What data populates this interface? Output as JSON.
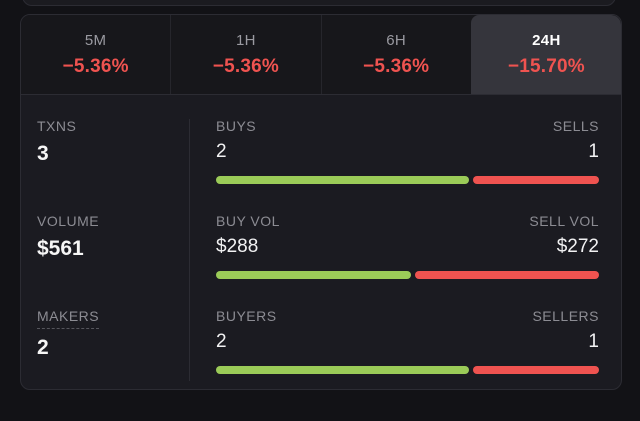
{
  "colors": {
    "page_bg": "#121216",
    "panel_bg": "#1b1b21",
    "active_tab_bg": "#35353c",
    "negative_red": "#ef5350",
    "buy_green": "#9bcb58",
    "sell_red": "#ef5350",
    "label_gray": "#8c8c93"
  },
  "timeframes": [
    {
      "label": "5M",
      "change": "−5.36%",
      "active": false
    },
    {
      "label": "1H",
      "change": "−5.36%",
      "active": false
    },
    {
      "label": "6H",
      "change": "−5.36%",
      "active": false
    },
    {
      "label": "24H",
      "change": "−15.70%",
      "active": true
    }
  ],
  "stats_left": [
    {
      "label": "TXNS",
      "value": "3"
    },
    {
      "label": "VOLUME",
      "value": "$561"
    },
    {
      "label": "MAKERS",
      "value": "2"
    }
  ],
  "stats_right": [
    {
      "left_label": "BUYS",
      "right_label": "SELLS",
      "left_value": "2",
      "right_value": "1",
      "buy": 2,
      "sell": 1
    },
    {
      "left_label": "BUY VOL",
      "right_label": "SELL VOL",
      "left_value": "$288",
      "right_value": "$272",
      "buy": 288,
      "sell": 272
    },
    {
      "left_label": "BUYERS",
      "right_label": "SELLERS",
      "left_value": "2",
      "right_value": "1",
      "buy": 2,
      "sell": 1
    }
  ]
}
